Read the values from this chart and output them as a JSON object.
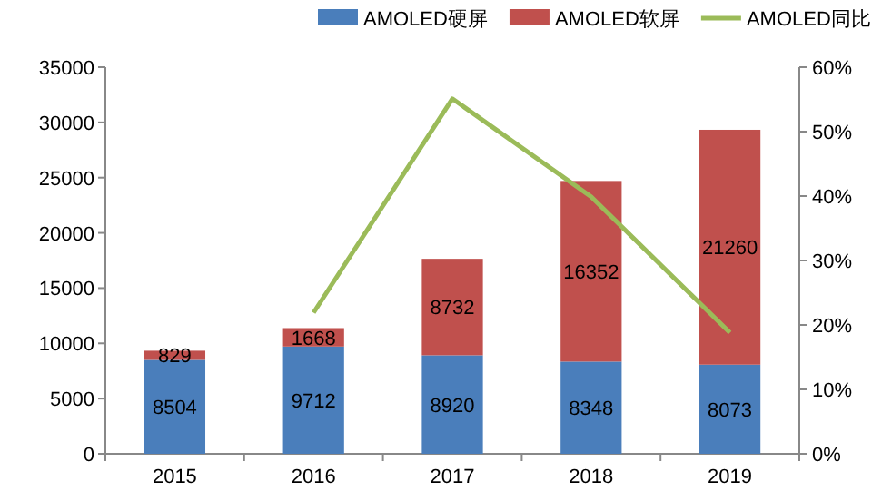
{
  "chart_data": {
    "type": "bar",
    "stacked": true,
    "categories": [
      "2015",
      "2016",
      "2017",
      "2018",
      "2019"
    ],
    "series": [
      {
        "name": "AMOLED硬屏",
        "color": "#4a7ebb",
        "values": [
          8504,
          9712,
          8920,
          8348,
          8073
        ],
        "value_labels": [
          "8504",
          "9712",
          "8920",
          "8348",
          "8073"
        ]
      },
      {
        "name": "AMOLED软屏",
        "color": "#c0504d",
        "values": [
          829,
          1668,
          8732,
          16352,
          21260
        ],
        "value_labels": [
          "829",
          "1668",
          "8732",
          "16352",
          "21260"
        ]
      },
      {
        "name": "AMOLED同比",
        "type": "line",
        "axis": "y2",
        "color": "#9bbb59",
        "values": [
          null,
          21.9,
          55.1,
          39.9,
          18.8
        ]
      }
    ],
    "ylim": [
      0,
      35000
    ],
    "yticks": [
      0,
      5000,
      10000,
      15000,
      20000,
      25000,
      30000,
      35000
    ],
    "y2lim": [
      0,
      60
    ],
    "y2ticks": [
      {
        "value": 0,
        "label": "0%"
      },
      {
        "value": 10,
        "label": "10%"
      },
      {
        "value": 20,
        "label": "20%"
      },
      {
        "value": 30,
        "label": "30%"
      },
      {
        "value": 40,
        "label": "40%"
      },
      {
        "value": 50,
        "label": "50%"
      },
      {
        "value": 60,
        "label": "60%"
      }
    ],
    "legend": "top",
    "grid": false,
    "line_style": "solid",
    "marker": "none"
  }
}
